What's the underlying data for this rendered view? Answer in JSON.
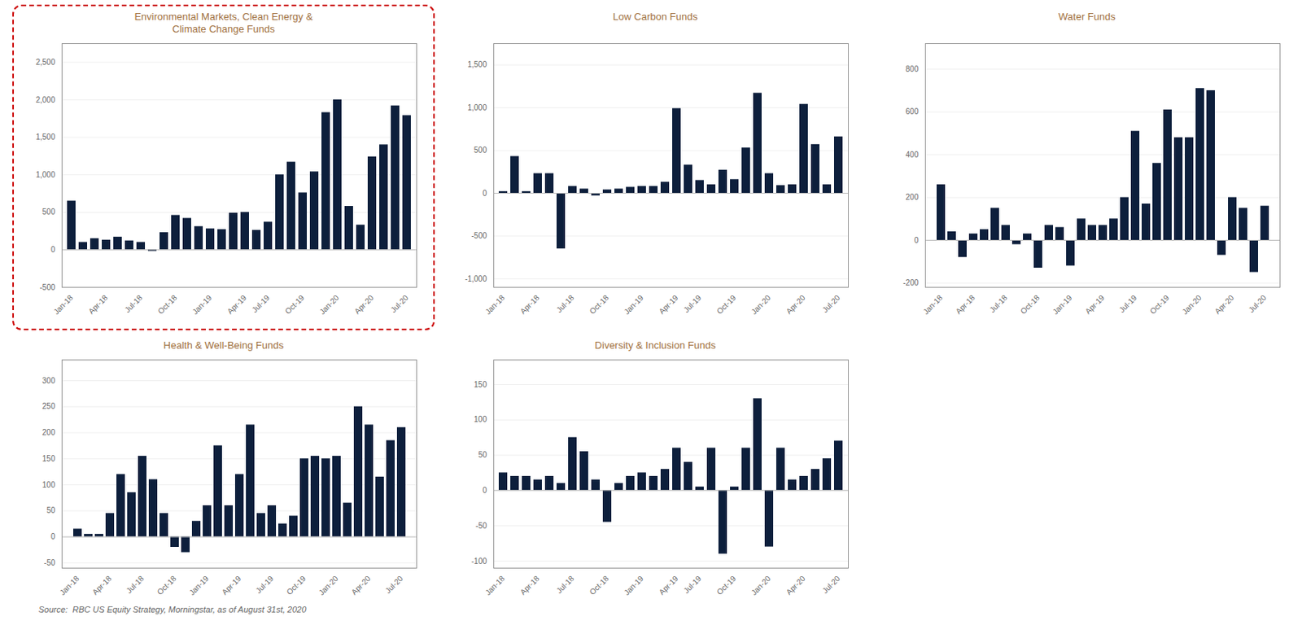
{
  "chart_data": [
    {
      "type": "bar",
      "title": "Environmental Markets, Clean Energy &\nClimate Change Funds",
      "color": "#0d1f3c",
      "grid": true,
      "categories": [
        "Jan-18",
        null,
        null,
        "Apr-18",
        null,
        null,
        "Jul-18",
        null,
        null,
        "Oct-18",
        null,
        null,
        "Jan-19",
        null,
        null,
        "Apr-19",
        null,
        "Jul-19",
        null,
        null,
        "Oct-19",
        null,
        null,
        "Jan-20",
        null,
        null,
        "Apr-20",
        null,
        null,
        "Jul-20"
      ],
      "values": [
        650,
        100,
        150,
        130,
        170,
        120,
        100,
        -20,
        230,
        460,
        420,
        310,
        280,
        270,
        490,
        500,
        260,
        370,
        1000,
        1170,
        760,
        1040,
        1830,
        2000,
        580,
        330,
        1240,
        1400,
        1920,
        1790
      ],
      "ylim": [
        -500,
        2750
      ],
      "yticks": [
        -500,
        0,
        500,
        {
          "value": 1000,
          "label": "1,000"
        },
        {
          "value": 1500,
          "label": "1,500"
        },
        {
          "value": 2000,
          "label": "2,000"
        },
        {
          "value": 2500,
          "label": "2,500"
        }
      ]
    },
    {
      "type": "bar",
      "title": "Low Carbon Funds",
      "color": "#0d1f3c",
      "grid": true,
      "categories": [
        "Jan-18",
        null,
        null,
        "Apr-18",
        null,
        null,
        "Jul-18",
        null,
        null,
        "Oct-18",
        null,
        null,
        "Jan-19",
        null,
        null,
        "Apr-19",
        null,
        "Jul-19",
        null,
        null,
        "Oct-19",
        null,
        null,
        "Jan-20",
        null,
        null,
        "Apr-20",
        null,
        null,
        "Jul-20"
      ],
      "values": [
        20,
        430,
        20,
        230,
        230,
        -650,
        80,
        50,
        -30,
        40,
        50,
        70,
        80,
        80,
        130,
        990,
        330,
        150,
        100,
        270,
        160,
        530,
        1170,
        230,
        90,
        100,
        1040,
        570,
        100,
        660
      ],
      "ylim": [
        -1100,
        1750
      ],
      "yticks": [
        {
          "value": -1000,
          "label": "-1,000"
        },
        -500,
        0,
        500,
        {
          "value": 1000,
          "label": "1,000"
        },
        {
          "value": 1500,
          "label": "1,500"
        }
      ]
    },
    {
      "type": "bar",
      "title": "Water Funds",
      "color": "#0d1f3c",
      "grid": true,
      "categories": [
        "Jan-18",
        null,
        null,
        "Apr-18",
        null,
        null,
        "Jul-18",
        null,
        null,
        "Oct-18",
        null,
        null,
        "Jan-19",
        null,
        null,
        "Apr-19",
        null,
        null,
        "Jul-19",
        null,
        null,
        "Oct-19",
        null,
        null,
        "Jan-20",
        null,
        null,
        "Apr-20",
        null,
        null,
        "Jul-20"
      ],
      "values": [
        260,
        40,
        -80,
        30,
        50,
        150,
        70,
        -20,
        30,
        -130,
        70,
        60,
        -120,
        100,
        70,
        70,
        100,
        200,
        510,
        170,
        360,
        610,
        480,
        480,
        710,
        700,
        -70,
        200,
        150,
        -150,
        160
      ],
      "ylim": [
        -220,
        920
      ],
      "yticks": [
        -200,
        0,
        200,
        400,
        600,
        800
      ]
    },
    {
      "type": "bar",
      "title": "Health & Well-Being Funds",
      "color": "#0d1f3c",
      "grid": true,
      "categories": [
        "Jan-18",
        null,
        null,
        "Apr-18",
        null,
        null,
        "Jul-18",
        null,
        null,
        "Oct-18",
        null,
        null,
        "Jan-19",
        null,
        null,
        "Apr-19",
        null,
        null,
        "Jul-19",
        null,
        null,
        "Oct-19",
        null,
        null,
        "Jan-20",
        null,
        null,
        "Apr-20",
        null,
        null,
        "Jul-20"
      ],
      "values": [
        15,
        5,
        5,
        45,
        120,
        85,
        155,
        110,
        45,
        -20,
        -30,
        30,
        60,
        175,
        60,
        120,
        215,
        45,
        60,
        25,
        40,
        150,
        155,
        150,
        155,
        65,
        250,
        215,
        115,
        185,
        210
      ],
      "ylim": [
        -60,
        340
      ],
      "yticks": [
        -50,
        0,
        50,
        100,
        150,
        200,
        250,
        300
      ]
    },
    {
      "type": "bar",
      "title": "Diversity & Inclusion Funds",
      "color": "#0d1f3c",
      "grid": true,
      "categories": [
        "Jan-18",
        null,
        null,
        "Apr-18",
        null,
        null,
        "Jul-18",
        null,
        null,
        "Oct-18",
        null,
        null,
        "Jan-19",
        null,
        null,
        "Apr-19",
        null,
        "Jul-19",
        null,
        null,
        "Oct-19",
        null,
        null,
        "Jan-20",
        null,
        null,
        "Apr-20",
        null,
        null,
        "Jul-20"
      ],
      "values": [
        25,
        20,
        20,
        15,
        20,
        10,
        75,
        55,
        15,
        -45,
        10,
        20,
        25,
        20,
        30,
        60,
        40,
        5,
        60,
        -90,
        5,
        60,
        130,
        -80,
        60,
        15,
        20,
        30,
        45,
        70
      ],
      "ylim": [
        -110,
        185
      ],
      "yticks": [
        -100,
        -50,
        0,
        50,
        100,
        150
      ]
    }
  ],
  "caption": "Source:  RBC US Equity Strategy, Morningstar, as of August 31st, 2020"
}
